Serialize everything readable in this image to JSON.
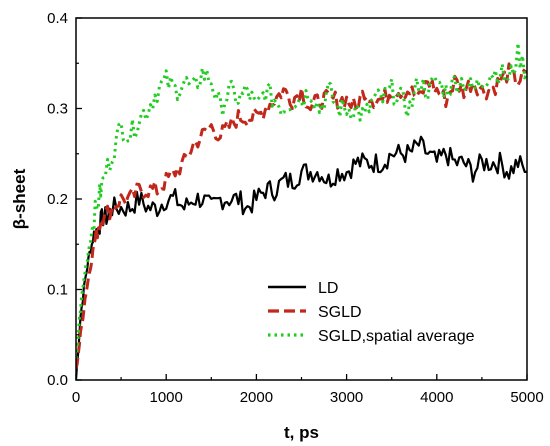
{
  "chart_data": {
    "type": "line",
    "xlabel": "t, ps",
    "ylabel": "β-sheet",
    "xlim": [
      0,
      5000
    ],
    "ylim": [
      0,
      0.4
    ],
    "xticks": [
      0,
      1000,
      2000,
      3000,
      4000,
      5000
    ],
    "yticks": [
      0.0,
      0.1,
      0.2,
      0.3,
      0.4
    ],
    "xtick_labels": [
      "0",
      "1000",
      "2000",
      "3000",
      "4000",
      "5000"
    ],
    "ytick_labels": [
      "0.0",
      "0.1",
      "0.2",
      "0.3",
      "0.4"
    ],
    "grid": false,
    "legend_position": "bottom-right",
    "series": [
      {
        "name": "LD",
        "color": "#000000",
        "style": "solid",
        "x": [
          0,
          50,
          100,
          150,
          200,
          250,
          300,
          350,
          400,
          500,
          600,
          700,
          800,
          900,
          1000,
          1100,
          1200,
          1300,
          1400,
          1500,
          1600,
          1700,
          1800,
          1900,
          2000,
          2100,
          2200,
          2300,
          2400,
          2500,
          2600,
          2700,
          2800,
          2900,
          3000,
          3100,
          3200,
          3300,
          3400,
          3500,
          3600,
          3700,
          3800,
          3900,
          4000,
          4100,
          4200,
          4300,
          4400,
          4500,
          4600,
          4700,
          4800,
          4900,
          5000
        ],
        "y": [
          0.0,
          0.07,
          0.11,
          0.14,
          0.16,
          0.17,
          0.18,
          0.18,
          0.19,
          0.19,
          0.19,
          0.2,
          0.19,
          0.19,
          0.2,
          0.2,
          0.19,
          0.2,
          0.2,
          0.19,
          0.2,
          0.2,
          0.2,
          0.19,
          0.2,
          0.21,
          0.21,
          0.22,
          0.22,
          0.23,
          0.23,
          0.23,
          0.22,
          0.23,
          0.23,
          0.24,
          0.24,
          0.24,
          0.24,
          0.25,
          0.25,
          0.25,
          0.26,
          0.25,
          0.24,
          0.25,
          0.24,
          0.24,
          0.23,
          0.24,
          0.24,
          0.24,
          0.23,
          0.24,
          0.23
        ]
      },
      {
        "name": "SGLD",
        "color": "#c0281c",
        "style": "dashed",
        "x": [
          0,
          50,
          100,
          150,
          200,
          250,
          300,
          400,
          500,
          600,
          700,
          800,
          900,
          1000,
          1100,
          1200,
          1300,
          1400,
          1500,
          1600,
          1700,
          1800,
          1900,
          2000,
          2100,
          2200,
          2300,
          2400,
          2500,
          2600,
          2700,
          2800,
          2900,
          3000,
          3100,
          3200,
          3300,
          3400,
          3500,
          3600,
          3700,
          3800,
          3900,
          4000,
          4100,
          4200,
          4300,
          4400,
          4500,
          4600,
          4700,
          4800,
          4900,
          5000
        ],
        "y": [
          0.01,
          0.05,
          0.09,
          0.12,
          0.15,
          0.17,
          0.18,
          0.19,
          0.2,
          0.2,
          0.21,
          0.21,
          0.21,
          0.22,
          0.23,
          0.24,
          0.26,
          0.27,
          0.28,
          0.27,
          0.28,
          0.29,
          0.29,
          0.29,
          0.3,
          0.31,
          0.32,
          0.31,
          0.32,
          0.3,
          0.31,
          0.31,
          0.31,
          0.31,
          0.3,
          0.32,
          0.31,
          0.31,
          0.32,
          0.32,
          0.32,
          0.31,
          0.33,
          0.32,
          0.31,
          0.33,
          0.32,
          0.33,
          0.32,
          0.32,
          0.33,
          0.34,
          0.33,
          0.34
        ]
      },
      {
        "name": "SGLD,spatial average",
        "color": "#22cc22",
        "style": "dotted",
        "x": [
          0,
          50,
          100,
          150,
          200,
          250,
          300,
          400,
          500,
          600,
          700,
          800,
          900,
          1000,
          1100,
          1200,
          1300,
          1400,
          1500,
          1600,
          1700,
          1800,
          1900,
          2000,
          2100,
          2200,
          2300,
          2400,
          2500,
          2600,
          2700,
          2800,
          2900,
          3000,
          3100,
          3200,
          3300,
          3400,
          3500,
          3600,
          3700,
          3800,
          3900,
          4000,
          4100,
          4200,
          4300,
          4400,
          4500,
          4600,
          4700,
          4800,
          4900,
          5000
        ],
        "y": [
          0.02,
          0.08,
          0.12,
          0.15,
          0.18,
          0.2,
          0.22,
          0.25,
          0.28,
          0.27,
          0.29,
          0.3,
          0.32,
          0.33,
          0.32,
          0.33,
          0.32,
          0.34,
          0.33,
          0.3,
          0.32,
          0.31,
          0.32,
          0.3,
          0.32,
          0.31,
          0.3,
          0.31,
          0.31,
          0.32,
          0.3,
          0.32,
          0.3,
          0.3,
          0.3,
          0.29,
          0.31,
          0.31,
          0.32,
          0.31,
          0.3,
          0.33,
          0.32,
          0.33,
          0.32,
          0.33,
          0.33,
          0.32,
          0.33,
          0.34,
          0.34,
          0.33,
          0.36,
          0.34
        ]
      }
    ]
  }
}
